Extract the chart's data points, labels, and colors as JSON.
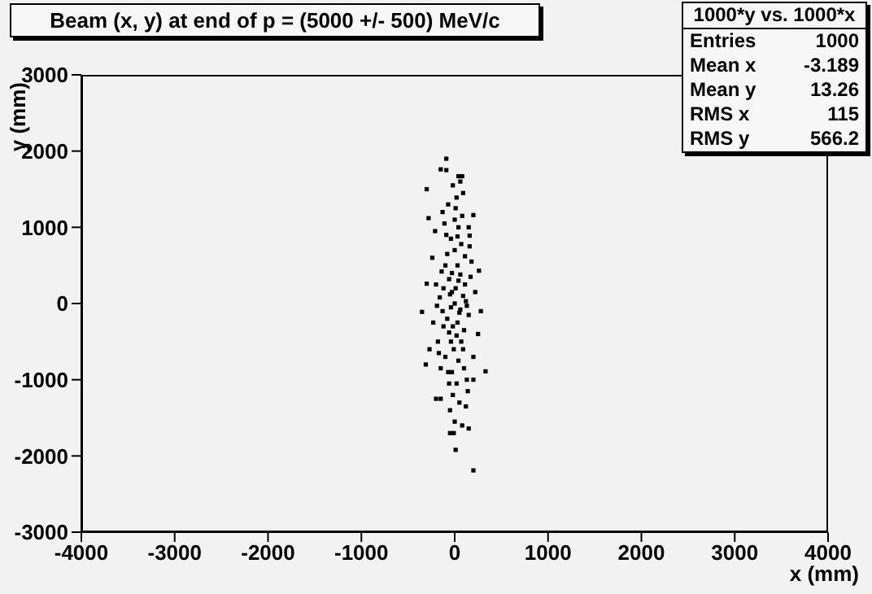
{
  "chart_data": {
    "type": "scatter",
    "title": "Beam (x, y) at end of p = (5000 +/- 500) MeV/c",
    "xlabel": "x (mm)",
    "ylabel": "y (mm)",
    "xlim": [
      -4000,
      4000
    ],
    "xticks": [
      -4000,
      -3000,
      -2000,
      -1000,
      0,
      1000,
      2000,
      3000,
      4000
    ],
    "ylim": [
      -3000,
      3000
    ],
    "yticks": [
      -3000,
      -2000,
      -1000,
      0,
      1000,
      2000,
      3000
    ],
    "marker": "square",
    "annotations": [
      "1000*y vs. 1000*x",
      "Entries 1000",
      "Mean x -3.189",
      "Mean y 13.26",
      "RMS x 115",
      "RMS y 566.2"
    ],
    "series": [
      {
        "color": "#000000",
        "x": [
          -90,
          200,
          10,
          150,
          -50,
          -200,
          330,
          -310,
          -350,
          -300,
          260,
          -280,
          -300,
          -150,
          40,
          80,
          20,
          200,
          160,
          0,
          -50,
          60,
          -120,
          110,
          30,
          -80,
          90,
          -30,
          150,
          -160,
          20,
          -60,
          70,
          -100,
          130,
          -140,
          40,
          -20,
          80,
          -180,
          180,
          -40,
          10,
          -90,
          100,
          -200,
          200,
          50,
          -70,
          120,
          -130,
          0,
          -10,
          60,
          -110,
          140,
          -60,
          30,
          -30,
          160,
          -150,
          90,
          -50,
          220,
          -230,
          0,
          -20,
          70,
          -80,
          110,
          -120,
          40,
          -40,
          250,
          -240,
          10,
          -10,
          130,
          -170,
          60,
          -90,
          150,
          -150,
          20,
          80,
          -30,
          50,
          -60,
          170,
          -190,
          0,
          100,
          -100,
          30,
          -70,
          200,
          -210,
          120,
          -130,
          40,
          -40,
          280,
          -270,
          90,
          -20
        ],
        "values": [
          1900,
          -2190,
          -1920,
          -1640,
          -1700,
          -1250,
          -890,
          -800,
          -110,
          260,
          430,
          1120,
          1500,
          1760,
          1670,
          1670,
          1390,
          1160,
          890,
          0,
          120,
          -80,
          -300,
          250,
          500,
          650,
          -600,
          -900,
          -150,
          80,
          -420,
          320,
          780,
          -700,
          -1000,
          420,
          1000,
          -1200,
          1150,
          -500,
          550,
          -50,
          200,
          900,
          -350,
          250,
          -700,
          -1300,
          1300,
          30,
          -100,
          700,
          -600,
          380,
          1050,
          -1150,
          -1050,
          -250,
          400,
          750,
          -850,
          1450,
          -1400,
          150,
          -250,
          -1550,
          1550,
          -500,
          -200,
          620,
          200,
          -750,
          850,
          -400,
          600,
          1250,
          -1700,
          -30,
          -650,
          1600,
          1750,
          1000,
          -1250,
          -1050,
          -1600,
          150,
          -120,
          -380,
          350,
          -30,
          1100,
          -850,
          500,
          880,
          -900,
          -1000,
          950,
          -1350,
          1200,
          300,
          -500,
          -100,
          -600,
          100,
          -300
        ]
      }
    ]
  }
}
